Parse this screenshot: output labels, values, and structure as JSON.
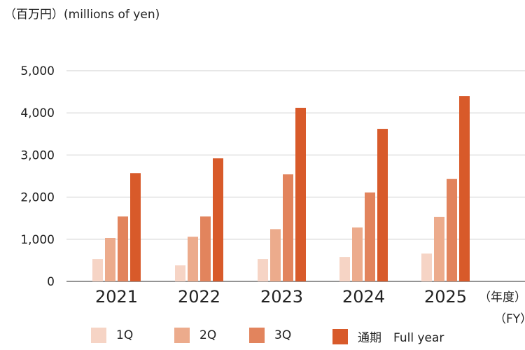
{
  "unit_label": "（百万円）(millions of yen)",
  "x_unit_jp": "（年度）",
  "x_unit_en": "（FY）",
  "colors": {
    "1Q": "#f6d4c5",
    "2Q": "#ecab8c",
    "3Q": "#e2845d",
    "full": "#d85a2a",
    "grid": "#cfcfcf",
    "axis": "#555555"
  },
  "chart_data": {
    "type": "bar",
    "categories": [
      "2021",
      "2022",
      "2023",
      "2024",
      "2025"
    ],
    "series": [
      {
        "name": "1Q",
        "values": [
          530,
          380,
          530,
          580,
          660
        ]
      },
      {
        "name": "2Q",
        "values": [
          1030,
          1060,
          1240,
          1280,
          1530
        ]
      },
      {
        "name": "3Q",
        "values": [
          1540,
          1540,
          2540,
          2110,
          2430
        ]
      },
      {
        "name": "通期　Full year",
        "values": [
          2570,
          2920,
          4120,
          3620,
          4400
        ]
      }
    ],
    "yticks": [
      "0",
      "1,000",
      "2,000",
      "3,000",
      "4,000",
      "5,000"
    ],
    "ylim": [
      0,
      5000
    ],
    "grid": true,
    "legend_position": "bottom"
  },
  "legend": [
    {
      "label": "1Q",
      "color": "#f6d4c5"
    },
    {
      "label": "2Q",
      "color": "#ecab8c"
    },
    {
      "label": "3Q",
      "color": "#e2845d"
    },
    {
      "label": "通期　Full year",
      "color": "#d85a2a"
    }
  ]
}
